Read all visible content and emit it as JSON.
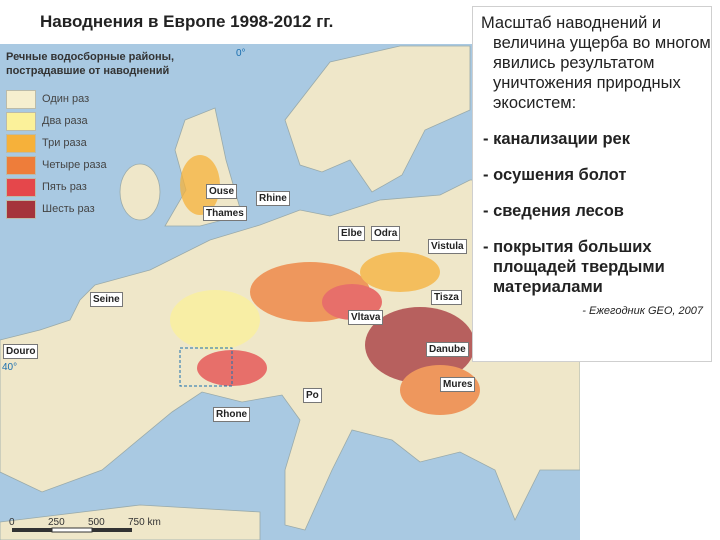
{
  "header": {
    "title": "Наводнения в Европе 1998-2012 гг."
  },
  "legend": {
    "title": "Речные водосборные районы, пострадавшие от наводнений",
    "items": [
      {
        "label": "Один раз",
        "color": "#f6efcf"
      },
      {
        "label": "Два раза",
        "color": "#fbf19a"
      },
      {
        "label": "Три раза",
        "color": "#f6b13a"
      },
      {
        "label": "Четыре раза",
        "color": "#ee7d3a"
      },
      {
        "label": "Пять раз",
        "color": "#e5474b"
      },
      {
        "label": "Шесть раз",
        "color": "#a5343b"
      }
    ]
  },
  "rivers": [
    "Ouse",
    "Thames",
    "Rhine",
    "Elbe",
    "Odra",
    "Vistula",
    "Seine",
    "Tisza",
    "Vltava",
    "Douro",
    "Danube",
    "Mures",
    "Po",
    "Rhone"
  ],
  "degrees": [
    "0°",
    "40°"
  ],
  "scale": [
    "0",
    "250",
    "500",
    "750 km"
  ],
  "text_box": {
    "intro": "Масштаб наводнений и величина ущерба во многом явились результатом уничтожения природных экосистем:",
    "bullets": [
      "- канализации рек",
      "- осушения болот",
      "- сведения лесов",
      "- покрытия больших площадей твердыми материалами"
    ],
    "citation": "- Ежегодник GEO, 2007"
  }
}
